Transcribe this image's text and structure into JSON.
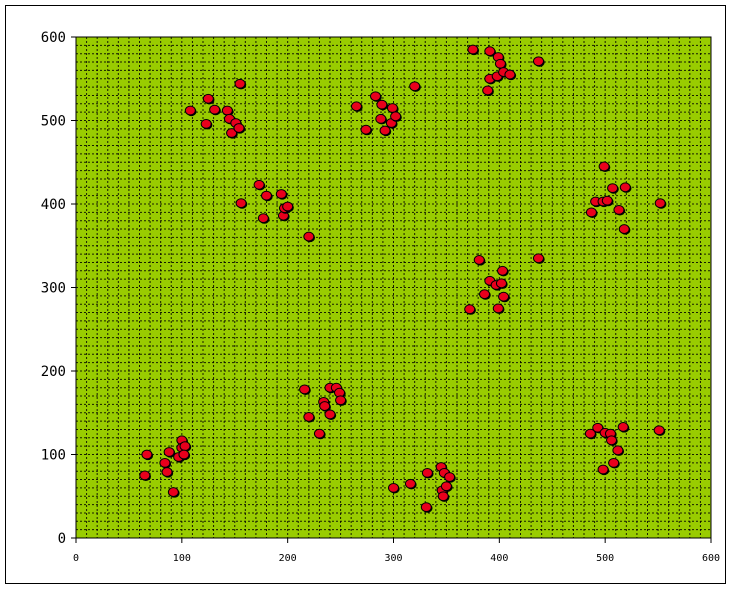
{
  "chart_data": {
    "type": "scatter",
    "title": "",
    "xlabel": "",
    "ylabel": "",
    "xlim": [
      0,
      600
    ],
    "ylim": [
      0,
      600
    ],
    "x_ticks": [
      0,
      100,
      200,
      300,
      400,
      500,
      600
    ],
    "y_ticks": [
      0,
      100,
      200,
      300,
      400,
      500,
      600
    ],
    "grid": true,
    "legend": "none",
    "colors": {
      "plot_bg": "#99cc00",
      "grid": "#000000",
      "marker_fill": "#e8001c",
      "marker_edge": "#000000"
    },
    "series": [
      {
        "points": [
          [
            67,
            100
          ],
          [
            65,
            75
          ],
          [
            84,
            90
          ],
          [
            86,
            79
          ],
          [
            88,
            103
          ],
          [
            92,
            55
          ],
          [
            97,
            97
          ],
          [
            100,
            117
          ],
          [
            100,
            108
          ],
          [
            103,
            110
          ],
          [
            102,
            100
          ],
          [
            108,
            512
          ],
          [
            123,
            496
          ],
          [
            125,
            526
          ],
          [
            131,
            513
          ],
          [
            143,
            512
          ],
          [
            145,
            502
          ],
          [
            147,
            485
          ],
          [
            151,
            497
          ],
          [
            154,
            491
          ],
          [
            155,
            544
          ],
          [
            156,
            401
          ],
          [
            173,
            423
          ],
          [
            177,
            383
          ],
          [
            180,
            410
          ],
          [
            194,
            412
          ],
          [
            196,
            386
          ],
          [
            197,
            395
          ],
          [
            200,
            397
          ],
          [
            220,
            361
          ],
          [
            216,
            178
          ],
          [
            220,
            145
          ],
          [
            230,
            125
          ],
          [
            234,
            163
          ],
          [
            235,
            158
          ],
          [
            240,
            148
          ],
          [
            240,
            180
          ],
          [
            246,
            180
          ],
          [
            249,
            174
          ],
          [
            250,
            165
          ],
          [
            265,
            517
          ],
          [
            274,
            489
          ],
          [
            283,
            529
          ],
          [
            288,
            502
          ],
          [
            289,
            519
          ],
          [
            292,
            488
          ],
          [
            298,
            497
          ],
          [
            299,
            515
          ],
          [
            302,
            505
          ],
          [
            320,
            541
          ],
          [
            300,
            60
          ],
          [
            316,
            65
          ],
          [
            331,
            37
          ],
          [
            332,
            78
          ],
          [
            345,
            85
          ],
          [
            346,
            57
          ],
          [
            347,
            50
          ],
          [
            348,
            78
          ],
          [
            350,
            62
          ],
          [
            353,
            73
          ],
          [
            372,
            274
          ],
          [
            381,
            333
          ],
          [
            386,
            292
          ],
          [
            391,
            308
          ],
          [
            397,
            303
          ],
          [
            399,
            275
          ],
          [
            402,
            305
          ],
          [
            403,
            320
          ],
          [
            404,
            289
          ],
          [
            437,
            335
          ],
          [
            375,
            585
          ],
          [
            389,
            536
          ],
          [
            391,
            550
          ],
          [
            391,
            583
          ],
          [
            398,
            553
          ],
          [
            399,
            576
          ],
          [
            401,
            568
          ],
          [
            404,
            558
          ],
          [
            410,
            555
          ],
          [
            437,
            571
          ],
          [
            487,
            390
          ],
          [
            491,
            403
          ],
          [
            498,
            403
          ],
          [
            499,
            445
          ],
          [
            502,
            404
          ],
          [
            507,
            419
          ],
          [
            513,
            393
          ],
          [
            518,
            370
          ],
          [
            519,
            420
          ],
          [
            552,
            401
          ],
          [
            486,
            125
          ],
          [
            493,
            132
          ],
          [
            498,
            82
          ],
          [
            500,
            126
          ],
          [
            505,
            125
          ],
          [
            506,
            117
          ],
          [
            508,
            90
          ],
          [
            512,
            105
          ],
          [
            517,
            133
          ],
          [
            551,
            129
          ]
        ]
      }
    ]
  }
}
